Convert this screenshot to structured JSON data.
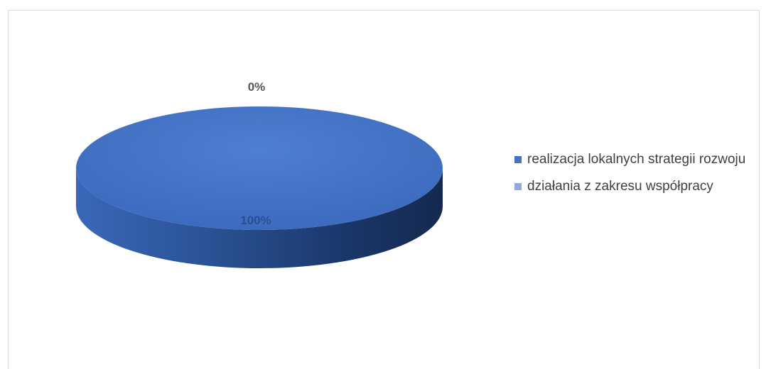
{
  "title": "",
  "chart_data": {
    "type": "pie",
    "style": "3d",
    "categories": [
      "realizacja lokalnych strategii rozwoju",
      "działania z zakresu współpracy"
    ],
    "values": [
      100,
      0
    ],
    "data_labels": [
      "100%",
      "0%"
    ],
    "colors": [
      "#4472c4",
      "#8faadc"
    ],
    "legend_position": "right"
  }
}
